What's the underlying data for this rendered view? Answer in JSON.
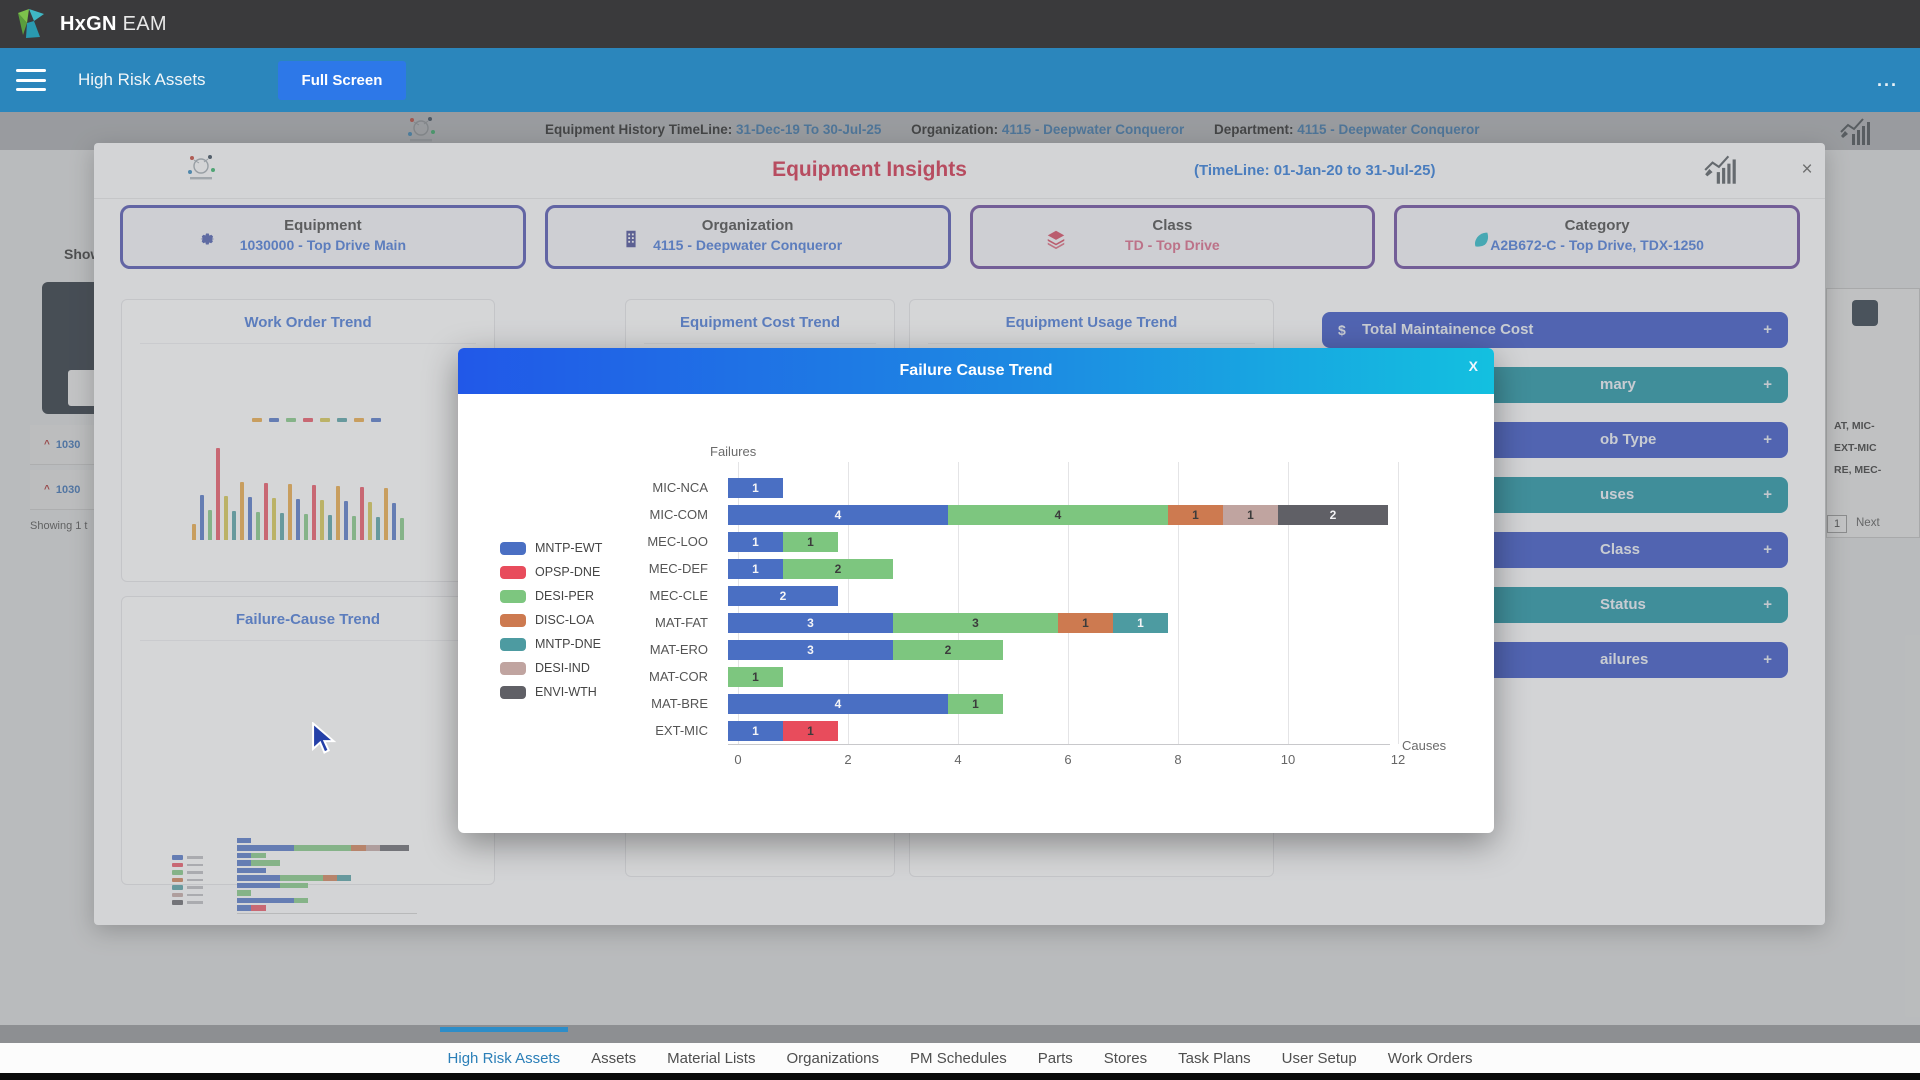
{
  "topbar": {
    "brand_bold": "HxGN",
    "brand_suffix": "EAM"
  },
  "navbar": {
    "title": "High Risk Assets",
    "fullscreen_label": "Full Screen",
    "overflow_label": "...",
    "bar_color": "#2b86bc",
    "fullscreen_color": "#2d78e8"
  },
  "page_header": {
    "timeline_label": "Equipment History TimeLine:",
    "timeline_value": "31-Dec-19 To 30-Jul-25",
    "organization_label": "Organization:",
    "organization_value": "4115 - Deepwater Conqueror",
    "department_label": "Department:",
    "department_value": "4115 - Deepwater Conqueror"
  },
  "background_page": {
    "show_label": "Show",
    "list_rows": [
      {
        "caret": "^",
        "text": "1030"
      },
      {
        "caret": "^",
        "text": "1030"
      }
    ],
    "showing_text": "Showing 1 t",
    "right_fragments": [
      "AT, MIC-",
      "EXT-MIC",
      "RE, MEC-"
    ],
    "pager": {
      "page": "1",
      "next_label": "Next"
    }
  },
  "insights_modal": {
    "title": "Equipment Insights",
    "title_color": "#ce1f3e",
    "timeline": "(TimeLine: 01-Jan-20 to 31-Jul-25)",
    "close_label": "×",
    "filters": [
      {
        "name": "Equipment",
        "value": "1030000 - Top Drive Main",
        "icon": "gear",
        "value_style": "blue",
        "border": "b1"
      },
      {
        "name": "Organization",
        "value": "4115 - Deepwater Conqueror",
        "icon": "building",
        "value_style": "blue",
        "border": "b1"
      },
      {
        "name": "Class",
        "value": "TD - Top Drive",
        "icon": "layers",
        "value_style": "red",
        "border": "b2"
      },
      {
        "name": "Category",
        "value": "A2B672-C - Top Drive, TDX-1250",
        "icon": "tag",
        "value_style": "blue",
        "border": "b2"
      }
    ],
    "panel_titles": {
      "work_order": "Work Order Trend",
      "failure_cause": "Failure-Cause Trend",
      "cost": "Equipment Cost Trend",
      "usage": "Equipment Usage Trend"
    },
    "right_buttons": [
      {
        "label": "Total Maintainence Cost",
        "icon": "$",
        "style": "blue",
        "partial": false,
        "plus": "+"
      },
      {
        "label": "mary",
        "style": "teal",
        "partial": true,
        "plus": "+"
      },
      {
        "label": "ob Type",
        "style": "blue",
        "partial": true,
        "plus": "+"
      },
      {
        "label": "uses",
        "style": "teal",
        "partial": true,
        "plus": "+"
      },
      {
        "label": "Class",
        "style": "blue",
        "partial": true,
        "plus": "+"
      },
      {
        "label": "Status",
        "style": "teal",
        "partial": true,
        "plus": "+"
      },
      {
        "label": "ailures",
        "style": "blue",
        "partial": true,
        "plus": "+"
      }
    ]
  },
  "failure_modal": {
    "title": "Failure Cause Trend",
    "close_label": "X",
    "header_gradient": [
      "#2158e8",
      "#13c0e0"
    ]
  },
  "chart_data": {
    "type": "bar",
    "orientation": "horizontal",
    "stacked": true,
    "title": "Failure Cause Trend",
    "xlabel": "Causes",
    "ylabel": "Failures",
    "xlim": [
      0,
      12
    ],
    "xticks": [
      0,
      2,
      4,
      6,
      8,
      10,
      12
    ],
    "grid": true,
    "legend_position": "left",
    "categories": [
      "MIC-NCA",
      "MIC-COM",
      "MEC-LOO",
      "MEC-DEF",
      "MEC-CLE",
      "MAT-FAT",
      "MAT-ERO",
      "MAT-COR",
      "MAT-BRE",
      "EXT-MIC"
    ],
    "series": [
      {
        "name": "MNTP-EWT",
        "color": "#4a6fc3",
        "light_text": true,
        "values": [
          1,
          4,
          1,
          1,
          2,
          3,
          3,
          0,
          4,
          1
        ]
      },
      {
        "name": "OPSP-DNE",
        "color": "#e84c5c",
        "light_text": false,
        "values": [
          0,
          0,
          0,
          0,
          0,
          0,
          0,
          0,
          0,
          1
        ]
      },
      {
        "name": "DESI-PER",
        "color": "#7dc67f",
        "light_text": false,
        "values": [
          0,
          4,
          1,
          2,
          0,
          3,
          2,
          1,
          1,
          0
        ]
      },
      {
        "name": "DISC-LOA",
        "color": "#cd7a50",
        "light_text": false,
        "values": [
          0,
          1,
          0,
          0,
          0,
          1,
          0,
          0,
          0,
          0
        ]
      },
      {
        "name": "MNTP-DNE",
        "color": "#4d9ba1",
        "light_text": true,
        "values": [
          0,
          0,
          0,
          0,
          0,
          1,
          0,
          0,
          0,
          0
        ]
      },
      {
        "name": "DESI-IND",
        "color": "#c0a4a0",
        "light_text": false,
        "values": [
          0,
          1,
          0,
          0,
          0,
          0,
          0,
          0,
          0,
          0
        ]
      },
      {
        "name": "ENVI-WTH",
        "color": "#606066",
        "light_text": true,
        "values": [
          0,
          2,
          0,
          0,
          0,
          0,
          0,
          0,
          0,
          0
        ]
      }
    ]
  },
  "bottom_nav": {
    "items": [
      "High Risk Assets",
      "Assets",
      "Material Lists",
      "Organizations",
      "PM Schedules",
      "Parts",
      "Stores",
      "Task Plans",
      "User Setup",
      "Work Orders"
    ],
    "active_index": 0
  }
}
